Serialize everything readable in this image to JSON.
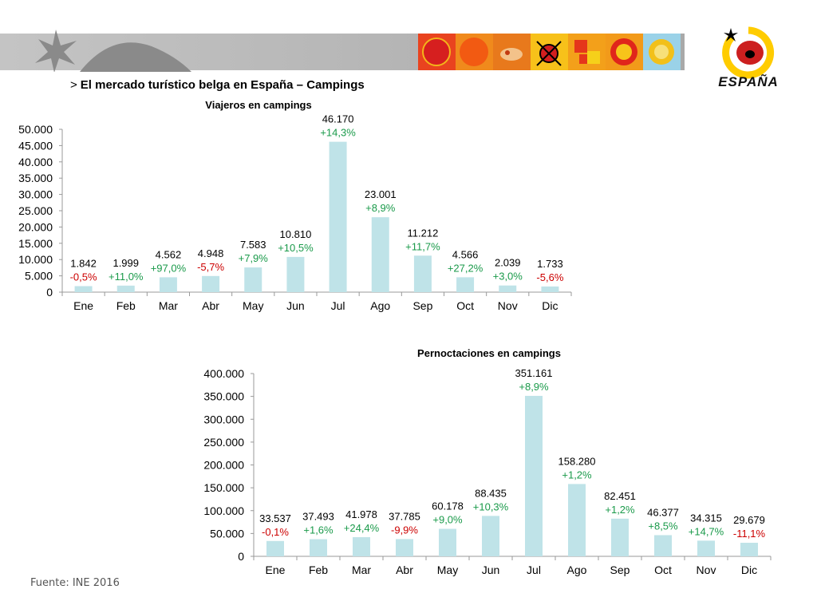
{
  "header": {
    "arrow": ">",
    "title": "El mercado turístico belga en España – Campings"
  },
  "logo": {
    "wordmark": "España",
    "colors": {
      "sun_yellow": "#ffcc00",
      "sun_red": "#cc1f1f",
      "star_black": "#000000"
    }
  },
  "banner": {
    "colors": {
      "gray": "#b8b8b8",
      "tile_red": "#d62a1e",
      "tile_orange": "#f07a1a",
      "tile_yellow": "#f5c400"
    },
    "tiles": [
      "sun-tile",
      "orange-disc-tile",
      "hedgehog-tile",
      "ladybug-tile",
      "geometric-tile",
      "ring-tile",
      "sunburst-tile"
    ]
  },
  "colors": {
    "bar": "#bfe3e8",
    "positive": "#1a9a4a",
    "negative": "#cc0000",
    "axis": "#999999"
  },
  "chart_data": [
    {
      "type": "bar",
      "title": "Viajeros en campings",
      "categories": [
        "Ene",
        "Feb",
        "Mar",
        "Abr",
        "May",
        "Jun",
        "Jul",
        "Ago",
        "Sep",
        "Oct",
        "Nov",
        "Dic"
      ],
      "values": [
        1842,
        1999,
        4562,
        4948,
        7583,
        10810,
        46170,
        23001,
        11212,
        4566,
        2039,
        1733
      ],
      "value_labels": [
        "1.842",
        "1.999",
        "4.562",
        "4.948",
        "7.583",
        "10.810",
        "46.170",
        "23.001",
        "11.212",
        "4.566",
        "2.039",
        "1.733"
      ],
      "change_labels": [
        "-0,5%",
        "+11,0%",
        "+97,0%",
        "-5,7%",
        "+7,9%",
        "+10,5%",
        "+14,3%",
        "+8,9%",
        "+11,7%",
        "+27,2%",
        "+3,0%",
        "-5,6%"
      ],
      "ylim": [
        0,
        50000
      ],
      "yticks": [
        0,
        5000,
        10000,
        15000,
        20000,
        25000,
        30000,
        35000,
        40000,
        45000,
        50000
      ],
      "ytick_labels": [
        "0",
        "5.000",
        "10.000",
        "15.000",
        "20.000",
        "25.000",
        "30.000",
        "35.000",
        "40.000",
        "45.000",
        "50.000"
      ],
      "xlabel": "",
      "ylabel": "",
      "grid": false,
      "legend": "none"
    },
    {
      "type": "bar",
      "title": "Pernoctaciones en campings",
      "categories": [
        "Ene",
        "Feb",
        "Mar",
        "Abr",
        "May",
        "Jun",
        "Jul",
        "Ago",
        "Sep",
        "Oct",
        "Nov",
        "Dic"
      ],
      "values": [
        33537,
        37493,
        41978,
        37785,
        60178,
        88435,
        351161,
        158280,
        82451,
        46377,
        34315,
        29679
      ],
      "value_labels": [
        "33.537",
        "37.493",
        "41.978",
        "37.785",
        "60.178",
        "88.435",
        "351.161",
        "158.280",
        "82.451",
        "46.377",
        "34.315",
        "29.679"
      ],
      "change_labels": [
        "-0,1%",
        "+1,6%",
        "+24,4%",
        "-9,9%",
        "+9,0%",
        "+10,3%",
        "+8,9%",
        "+1,2%",
        "+1,2%",
        "+8,5%",
        "+14,7%",
        "-11,1%"
      ],
      "ylim": [
        0,
        400000
      ],
      "yticks": [
        0,
        50000,
        100000,
        150000,
        200000,
        250000,
        300000,
        350000,
        400000
      ],
      "ytick_labels": [
        "0",
        "50.000",
        "100.000",
        "150.000",
        "200.000",
        "250.000",
        "300.000",
        "350.000",
        "400.000"
      ],
      "xlabel": "",
      "ylabel": "",
      "grid": false,
      "legend": "none"
    }
  ],
  "footer": {
    "source": "Fuente: INE 2016"
  }
}
